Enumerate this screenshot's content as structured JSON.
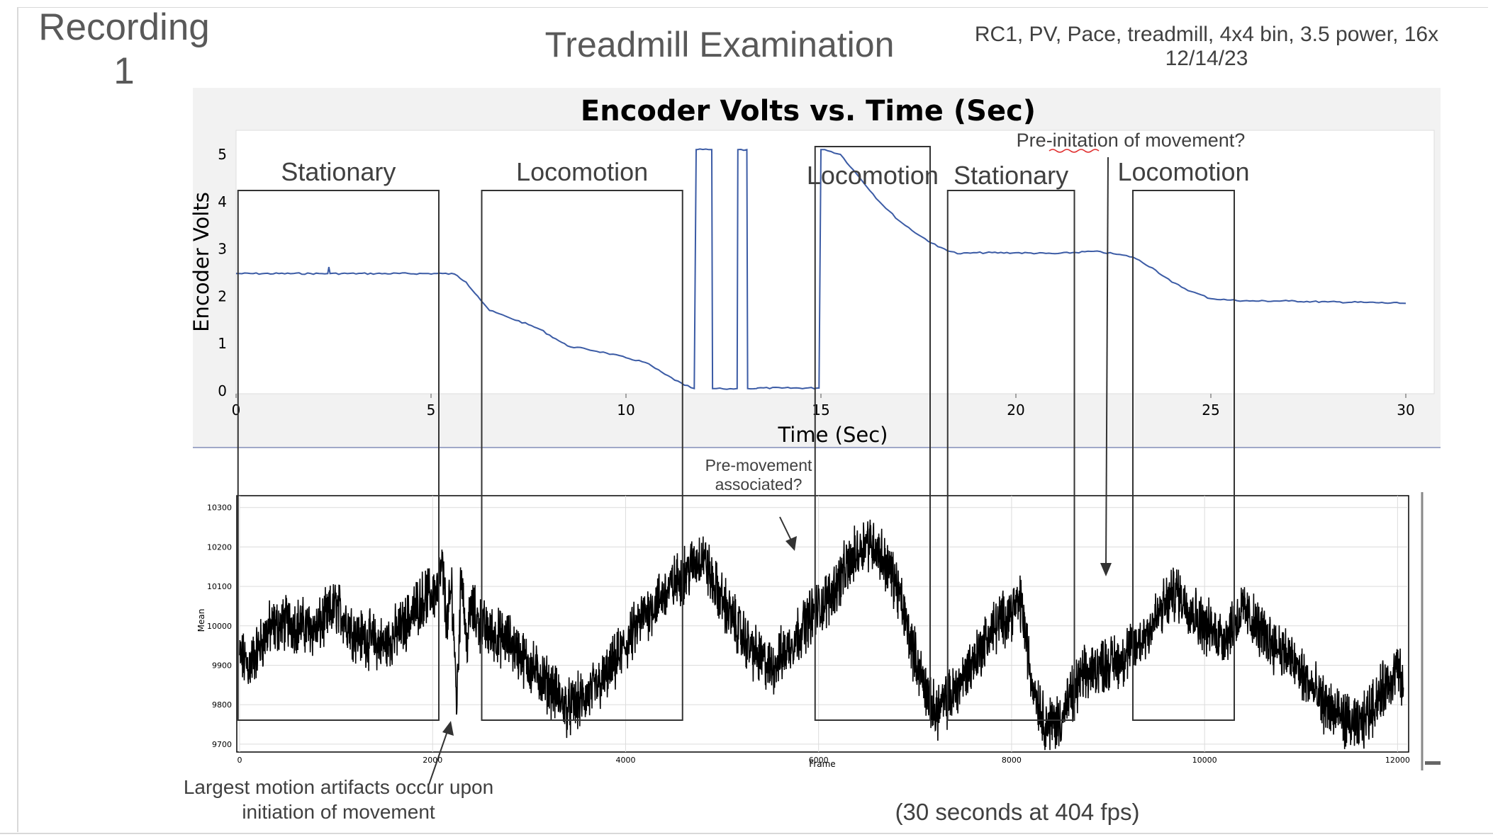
{
  "slide": {
    "recording_title": "Recording\n1",
    "title": "Treadmill Examination",
    "params": "RC1, PV, Pace, treadmill, 4x4 bin, 3.5 power, 16x 12/14/23",
    "fps_note": "(30 seconds at 404 fps)",
    "artifact_note": "Largest motion artifacts occur upon initiation of movement",
    "premovement_note": "Pre-movement associated?",
    "preinitation_note": "Pre-initation of movement?"
  },
  "chart_data": [
    {
      "type": "line",
      "title": "Encoder Volts vs. Time (Sec)",
      "xlabel": "Time (Sec)",
      "ylabel": "Encoder Volts",
      "xlim": [
        0,
        30
      ],
      "ylim": [
        0,
        5
      ],
      "xticks": [
        0,
        5,
        10,
        15,
        20,
        25,
        30
      ],
      "yticks": [
        0,
        1,
        2,
        3,
        4,
        5
      ],
      "grid": false,
      "line_color": "#3b5ba5",
      "series": [
        {
          "x": [
            0,
            2.35,
            2.38,
            2.41,
            5.3,
            5.6,
            5.9,
            6.2,
            6.5,
            7.0,
            7.5,
            7.8,
            8.2,
            8.5,
            9.0,
            9.5,
            10.0,
            10.5,
            11.0,
            11.5,
            11.75,
            11.8,
            11.82,
            12.2,
            12.22,
            12.5,
            12.85,
            12.87,
            13.1,
            13.12,
            13.35,
            13.37,
            14.0,
            14.9,
            14.95,
            15.0,
            15.1,
            15.5,
            16.0,
            16.5,
            17.0,
            17.5,
            18.0,
            18.5,
            19.0,
            20.0,
            21.0,
            22.0,
            22.5,
            23.0,
            23.5,
            24.0,
            24.5,
            25.0,
            25.5,
            26.0,
            27.0,
            28.0,
            29.0,
            30.0
          ],
          "y": [
            2.48,
            2.48,
            2.62,
            2.48,
            2.48,
            2.47,
            2.3,
            2.0,
            1.7,
            1.55,
            1.4,
            1.3,
            1.1,
            0.95,
            0.88,
            0.8,
            0.7,
            0.6,
            0.35,
            0.12,
            0.05,
            5.1,
            5.1,
            5.1,
            0.05,
            0.04,
            0.05,
            5.1,
            5.1,
            0.05,
            0.05,
            0.06,
            0.06,
            0.06,
            0.06,
            5.1,
            5.1,
            5.0,
            4.5,
            4.0,
            3.6,
            3.3,
            3.05,
            2.9,
            2.92,
            2.92,
            2.9,
            2.95,
            2.9,
            2.83,
            2.6,
            2.3,
            2.1,
            1.95,
            1.92,
            1.9,
            1.9,
            1.88,
            1.87,
            1.85
          ]
        }
      ]
    },
    {
      "type": "line",
      "title": "",
      "xlabel": "Frame",
      "ylabel": "Mean",
      "xlim": [
        0,
        12100
      ],
      "ylim": [
        9680,
        10330
      ],
      "xticks": [
        0,
        2000,
        4000,
        6000,
        8000,
        10000,
        12000
      ],
      "yticks": [
        9700,
        9800,
        9900,
        10000,
        10100,
        10200,
        10300
      ],
      "grid": true,
      "line_color": "#000000",
      "series": [
        {
          "x": [
            0,
            100,
            300,
            500,
            800,
            1000,
            1200,
            1500,
            1700,
            1900,
            2050,
            2100,
            2150,
            2200,
            2250,
            2300,
            2350,
            2400,
            2450,
            2500,
            2600,
            2800,
            3000,
            3200,
            3400,
            3600,
            3800,
            4000,
            4200,
            4400,
            4600,
            4800,
            4900,
            5100,
            5300,
            5500,
            5700,
            5900,
            6100,
            6300,
            6500,
            6600,
            6800,
            7000,
            7200,
            7400,
            7600,
            7800,
            8000,
            8100,
            8200,
            8350,
            8500,
            8700,
            8900,
            9100,
            9300,
            9500,
            9700,
            10000,
            10200,
            10400,
            10600,
            10800,
            11000,
            11200,
            11400,
            11600,
            11800,
            12000,
            12100
          ],
          "y": [
            9920,
            9900,
            9990,
            10010,
            9990,
            10050,
            9980,
            9950,
            10000,
            10070,
            10090,
            10150,
            10000,
            10100,
            9800,
            10150,
            9950,
            10050,
            10020,
            10000,
            9980,
            9960,
            9900,
            9850,
            9790,
            9820,
            9870,
            9950,
            10030,
            10080,
            10130,
            10180,
            10110,
            10020,
            9940,
            9890,
            9950,
            10020,
            10070,
            10150,
            10220,
            10200,
            10110,
            9920,
            9780,
            9830,
            9910,
            9990,
            10040,
            10060,
            9870,
            9750,
            9760,
            9860,
            9900,
            9910,
            9950,
            10020,
            10090,
            10000,
            9970,
            10040,
            9980,
            9940,
            9880,
            9810,
            9770,
            9740,
            9820,
            9890,
            9800
          ]
        }
      ]
    }
  ],
  "annotations": {
    "boxes": [
      {
        "label": "Stationary",
        "start_sec": 0.05,
        "end_sec": 5.2
      },
      {
        "label": "Locomotion",
        "start_sec": 6.3,
        "end_sec": 11.45
      },
      {
        "label": "Locomotion",
        "start_sec": 14.85,
        "end_sec": 17.8
      },
      {
        "label": "Stationary",
        "start_sec": 18.25,
        "end_sec": 21.5
      },
      {
        "label": "Locomotion",
        "start_sec": 23.0,
        "end_sec": 25.6
      }
    ]
  }
}
